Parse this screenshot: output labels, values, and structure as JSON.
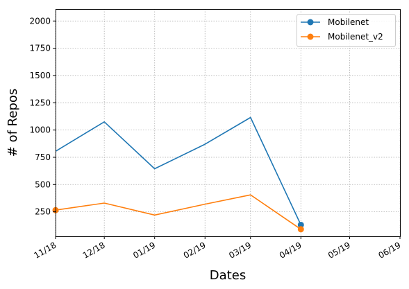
{
  "chart_data": {
    "type": "line",
    "xlabel": "Dates",
    "ylabel": "# of Repos",
    "x_tick_labels": [
      "11/18",
      "12/18",
      "01/19",
      "02/19",
      "03/19",
      "04/19",
      "05/19",
      "06/19"
    ],
    "y_ticks": [
      250,
      500,
      750,
      1000,
      1250,
      1500,
      1750,
      2000
    ],
    "ylim": [
      25,
      2110
    ],
    "xlim": [
      "2018-11-01",
      "2019-06-01"
    ],
    "grid": true,
    "legend_position": "top-right",
    "series": [
      {
        "name": "Mobilenet",
        "color": "#1f77b4",
        "x": [
          "2018-11-01",
          "2018-12-01",
          "2019-01-01",
          "2019-02-01",
          "2019-03-01",
          "2019-04-01"
        ],
        "values": [
          805,
          1075,
          645,
          870,
          1115,
          130
        ],
        "endpoint_markers": [
          5
        ]
      },
      {
        "name": "Mobilenet_v2",
        "color": "#ff7f0e",
        "x": [
          "2018-11-01",
          "2018-12-01",
          "2019-01-01",
          "2019-02-01",
          "2019-03-01",
          "2019-04-01"
        ],
        "values": [
          265,
          330,
          220,
          320,
          405,
          90
        ],
        "endpoint_markers": [
          0,
          5
        ]
      }
    ]
  }
}
